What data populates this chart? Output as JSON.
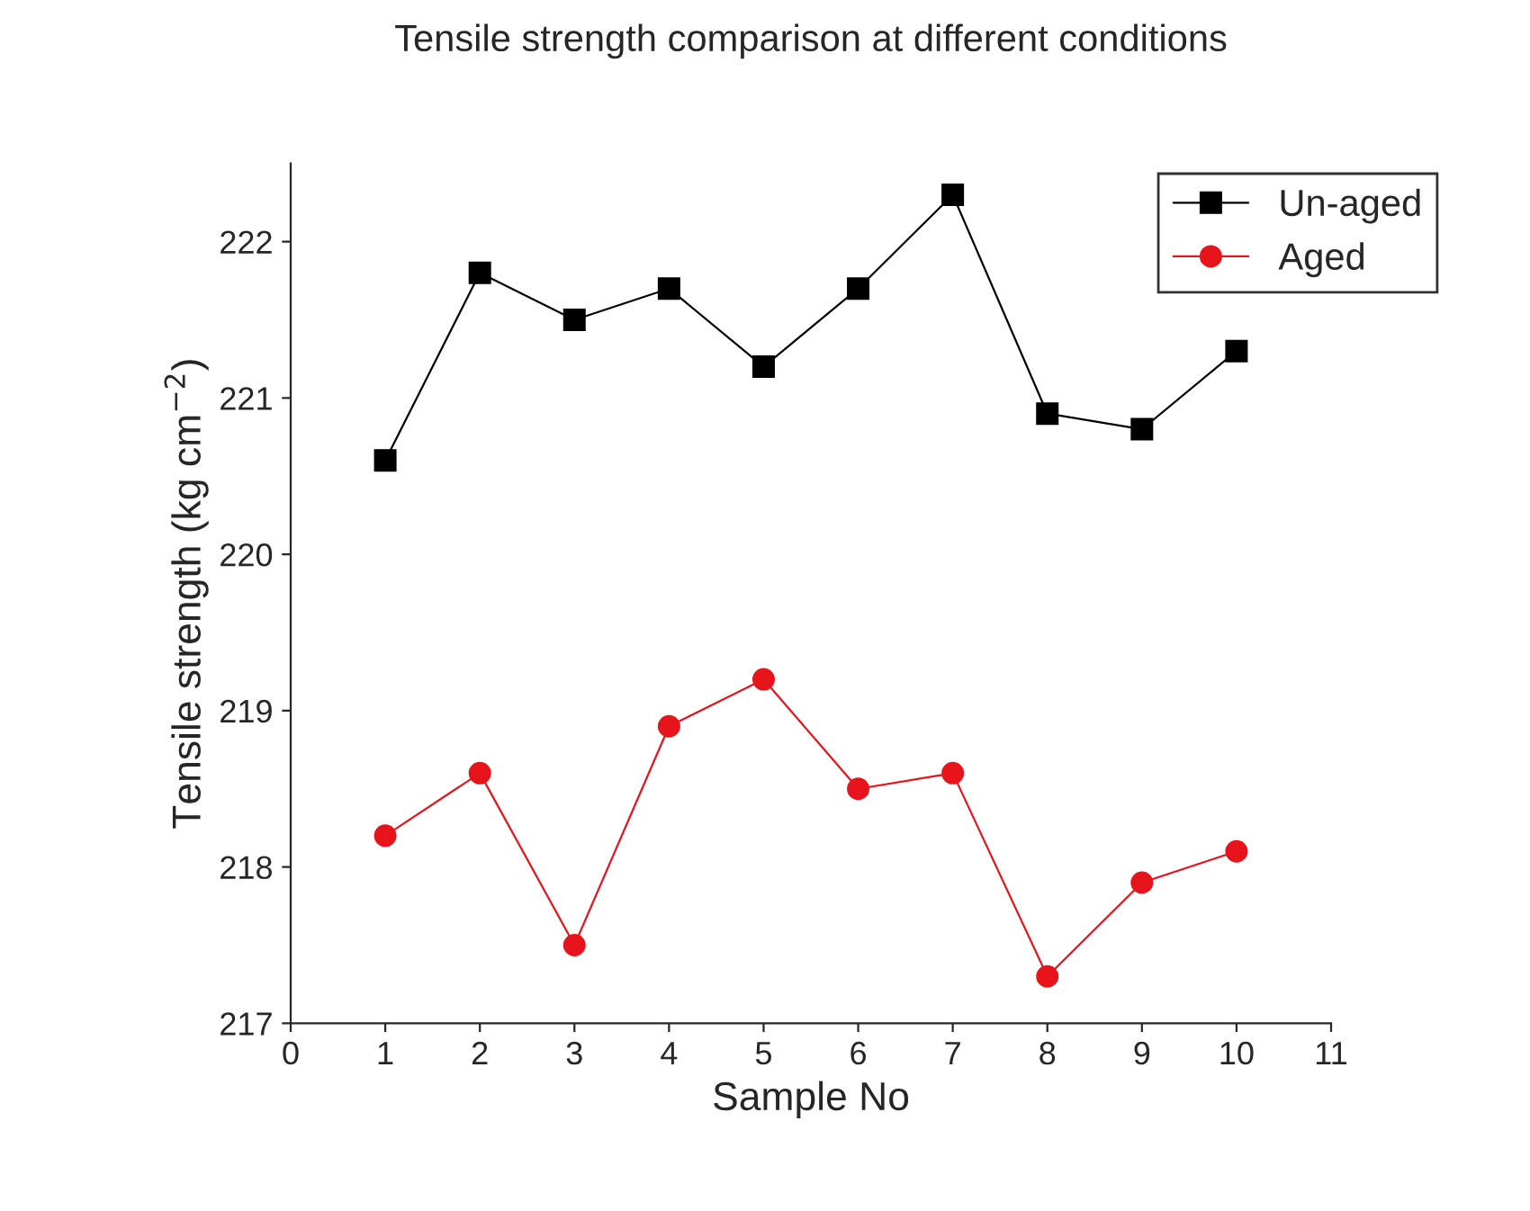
{
  "chart_data": {
    "type": "line",
    "title": "Tensile strength comparison at different conditions",
    "xlabel": "Sample No",
    "ylabel": "Tensile strength (kg cm$^{−2}$)",
    "x": [
      1,
      2,
      3,
      4,
      5,
      6,
      7,
      8,
      9,
      10
    ],
    "series": [
      {
        "name": "Un-aged",
        "color": "#000000",
        "marker": "square",
        "values": [
          220.6,
          221.8,
          221.5,
          221.7,
          221.2,
          221.7,
          222.3,
          220.9,
          220.8,
          221.3
        ]
      },
      {
        "name": "Aged",
        "color": "#e8141b",
        "marker": "circle",
        "values": [
          218.2,
          218.6,
          217.5,
          218.9,
          219.2,
          218.5,
          218.6,
          217.3,
          217.9,
          218.1
        ]
      }
    ],
    "xlim": [
      0,
      11
    ],
    "xticks": [
      0,
      1,
      2,
      3,
      4,
      5,
      6,
      7,
      8,
      9,
      10,
      11
    ],
    "ylim": [
      217,
      222.5
    ],
    "yticks": [
      217,
      218,
      219,
      220,
      221,
      222
    ],
    "grid": false,
    "legend": "top right",
    "line_style": "solid"
  }
}
